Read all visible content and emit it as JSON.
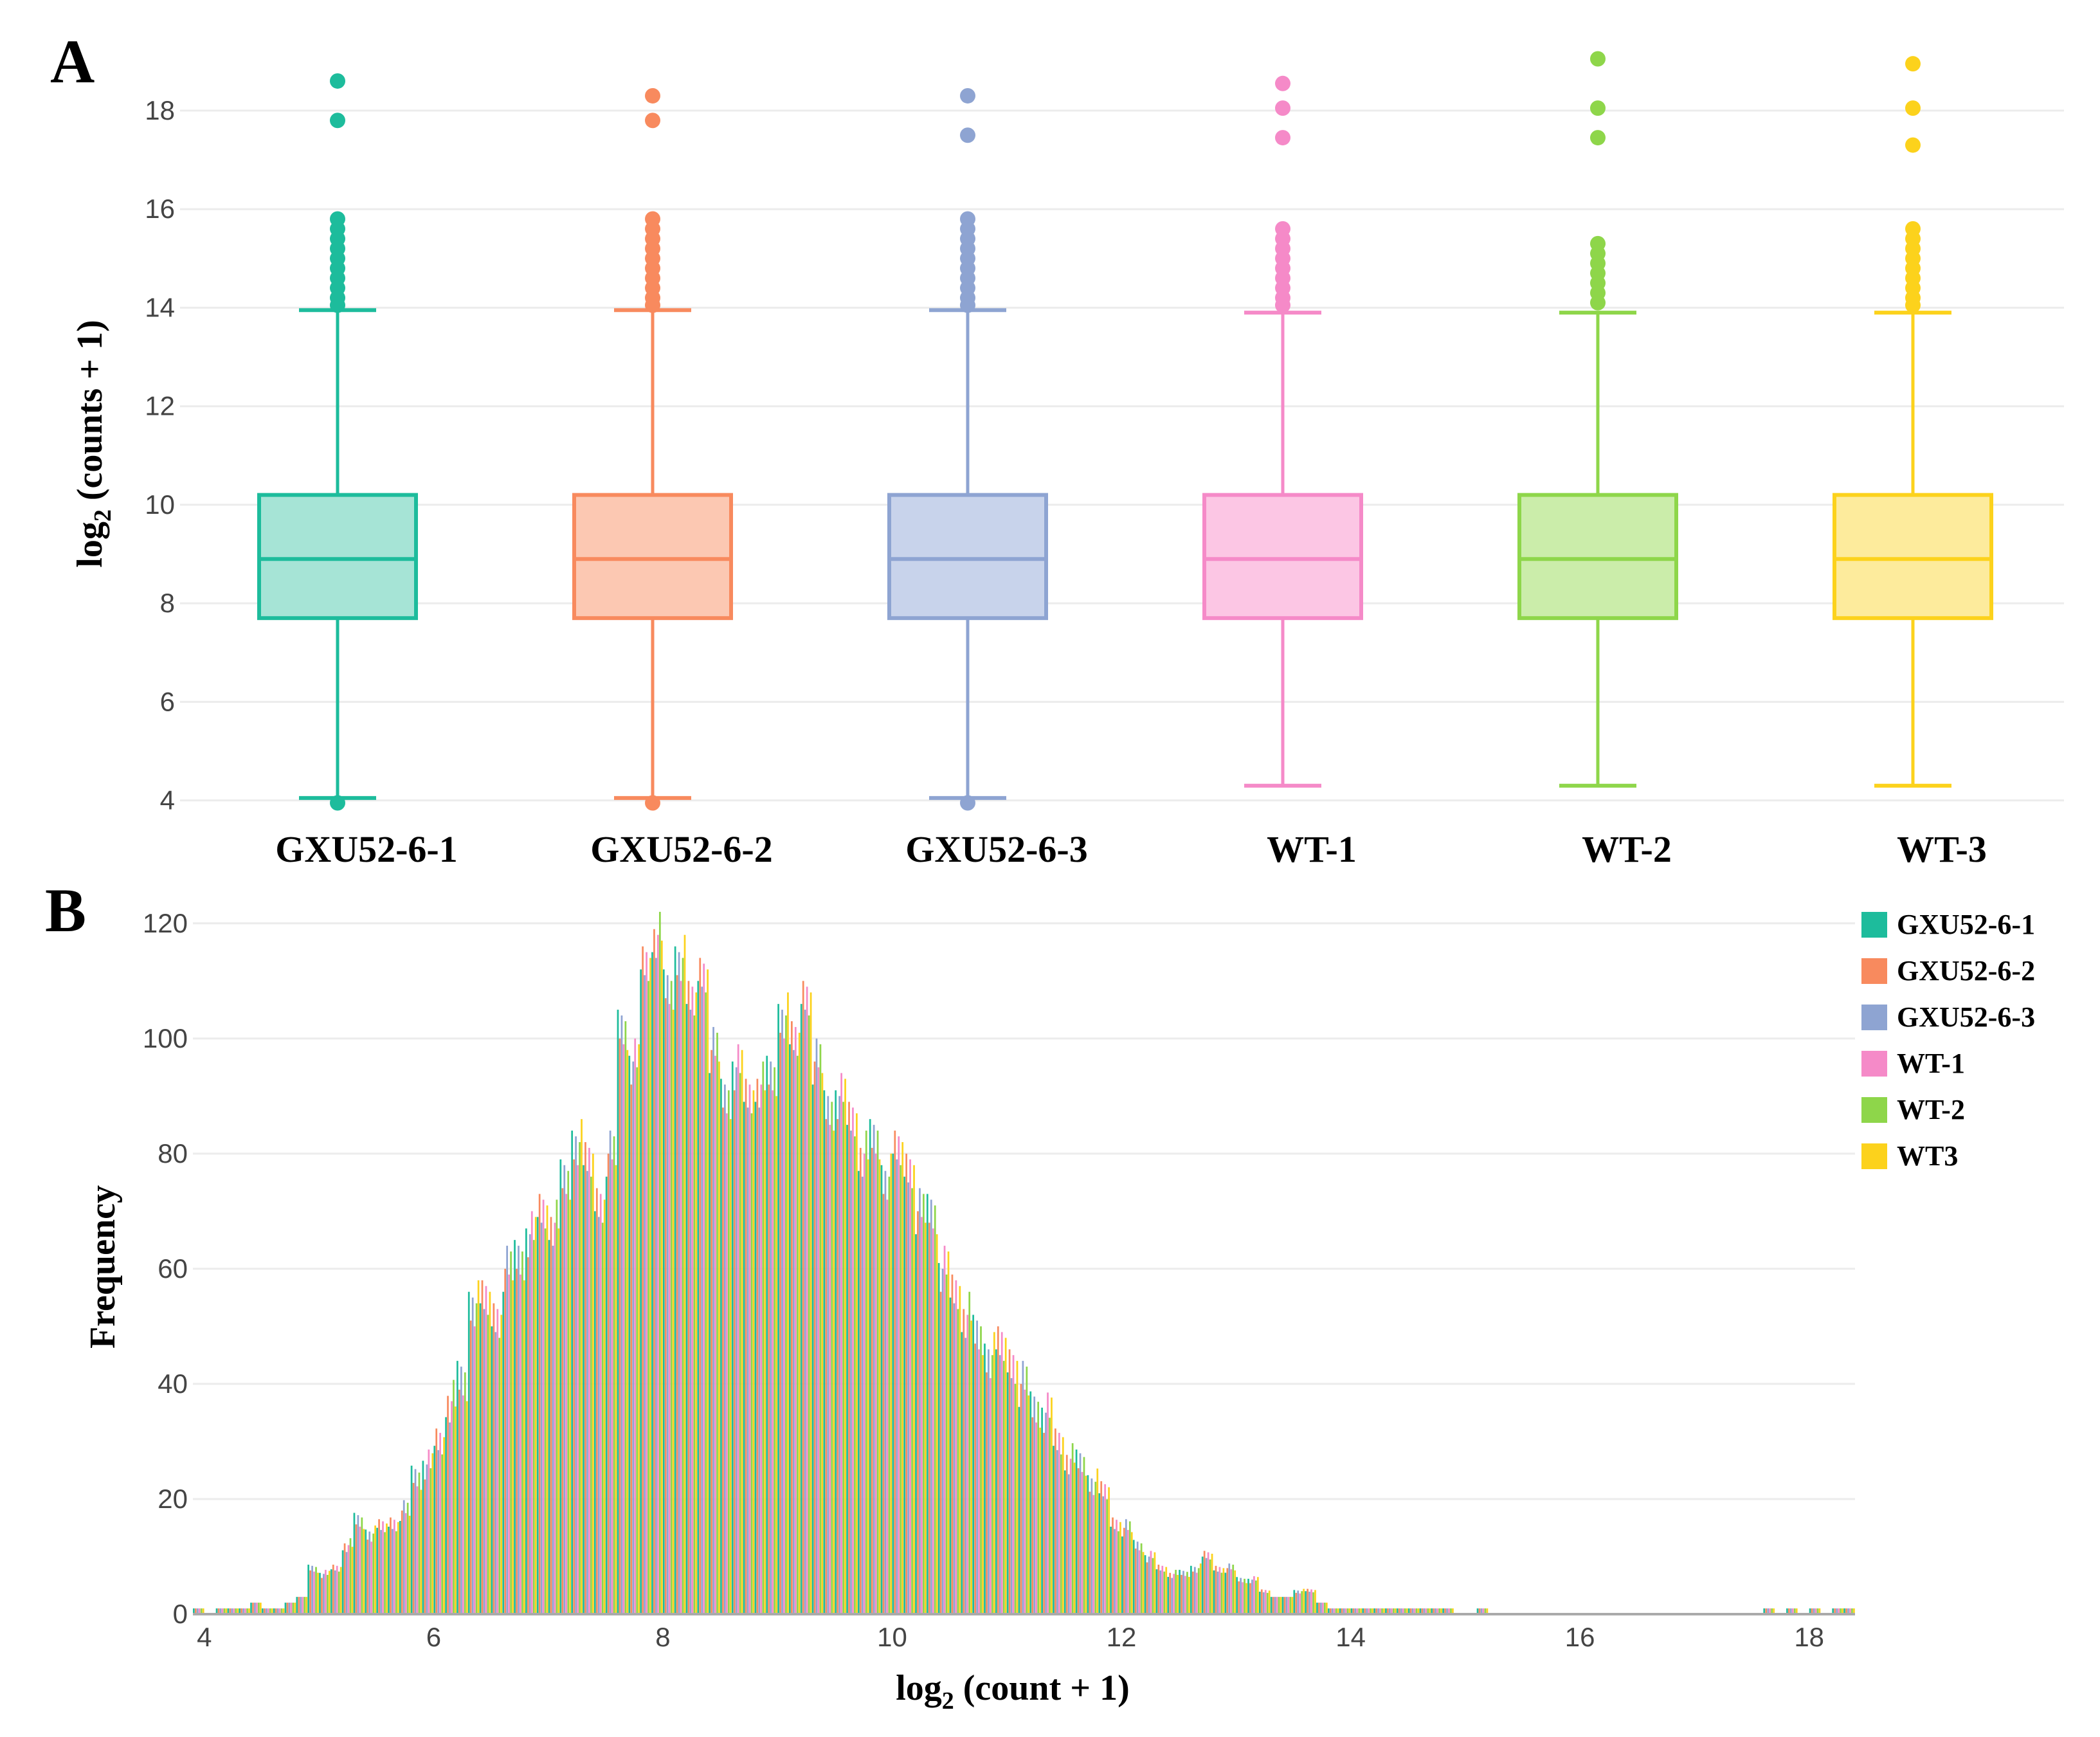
{
  "panels": {
    "a_letter": "A",
    "b_letter": "B"
  },
  "chart_data": [
    {
      "type": "box",
      "panel": "A",
      "ylabel_main": "log",
      "ylabel_sub": "2",
      "ylabel_rest": " (counts + 1)",
      "ylim": [
        3.8,
        19.2
      ],
      "yticks": [
        4,
        6,
        8,
        10,
        12,
        14,
        16,
        18
      ],
      "grid": true,
      "categories": [
        "GXU52-6-1",
        "GXU52-6-2",
        "GXU52-6-3",
        "WT-1",
        "WT-2",
        "WT-3"
      ],
      "colors": [
        "#1dbc9c",
        "#f88a5e",
        "#8ea4d2",
        "#f58ac8",
        "#8ed64a",
        "#fcd21c"
      ],
      "fills": [
        "#a6e4d6",
        "#fcc8b2",
        "#c8d3eb",
        "#fcc6e4",
        "#cbedaa",
        "#fdeb9c"
      ],
      "boxes": [
        {
          "min": 4.05,
          "q1": 7.7,
          "median": 8.9,
          "q3": 10.2,
          "max": 13.95,
          "outliers": [
            18.6,
            17.8,
            15.8,
            15.6,
            15.4,
            15.2,
            15.0,
            14.8,
            14.6,
            14.4,
            14.2,
            14.05,
            3.95
          ]
        },
        {
          "min": 4.05,
          "q1": 7.7,
          "median": 8.9,
          "q3": 10.2,
          "max": 13.95,
          "outliers": [
            18.3,
            17.8,
            15.8,
            15.6,
            15.4,
            15.2,
            15.0,
            14.8,
            14.6,
            14.4,
            14.2,
            14.05,
            3.95
          ]
        },
        {
          "min": 4.05,
          "q1": 7.7,
          "median": 8.9,
          "q3": 10.2,
          "max": 13.95,
          "outliers": [
            18.3,
            17.5,
            15.8,
            15.6,
            15.4,
            15.2,
            15.0,
            14.8,
            14.6,
            14.4,
            14.2,
            14.05,
            3.95
          ]
        },
        {
          "min": 4.3,
          "q1": 7.7,
          "median": 8.9,
          "q3": 10.2,
          "max": 13.9,
          "outliers": [
            18.55,
            18.05,
            17.45,
            15.6,
            15.4,
            15.2,
            15.0,
            14.8,
            14.6,
            14.4,
            14.2,
            14.05
          ]
        },
        {
          "min": 4.3,
          "q1": 7.7,
          "median": 8.9,
          "q3": 10.2,
          "max": 13.9,
          "outliers": [
            19.05,
            18.05,
            17.45,
            15.3,
            15.1,
            14.9,
            14.7,
            14.5,
            14.3,
            14.1
          ]
        },
        {
          "min": 4.3,
          "q1": 7.7,
          "median": 8.9,
          "q3": 10.2,
          "max": 13.9,
          "outliers": [
            18.95,
            18.05,
            17.3,
            15.6,
            15.4,
            15.2,
            15.0,
            14.8,
            14.6,
            14.4,
            14.2,
            14.05
          ]
        }
      ]
    },
    {
      "type": "bar",
      "panel": "B",
      "ylabel": "Frequency",
      "xlabel_main": "log",
      "xlabel_sub": "2",
      "xlabel_rest": " (count + 1)",
      "xlim": [
        3.9,
        18.4
      ],
      "ylim": [
        0,
        124
      ],
      "xticks": [
        4,
        6,
        8,
        10,
        12,
        14,
        16,
        18
      ],
      "yticks": [
        0,
        20,
        40,
        60,
        80,
        100,
        120
      ],
      "grid": true,
      "legend_position": "top-right",
      "series_names": [
        "GXU52-6-1",
        "GXU52-6-2",
        "GXU52-6-3",
        "WT-1",
        "WT-2",
        "WT3"
      ],
      "series_colors": [
        "#1dbc9c",
        "#f88a5e",
        "#8ea4d2",
        "#f58ac8",
        "#8ed64a",
        "#fcd21c"
      ],
      "bin_start": 3.9,
      "bin_width": 0.1,
      "approx_frequency_by_bin": [
        1,
        0,
        1,
        1,
        1,
        2,
        1,
        1,
        2,
        3,
        8,
        7,
        8,
        12,
        16,
        14,
        15,
        16,
        18,
        24,
        26,
        30,
        37,
        40,
        54,
        54,
        52,
        60,
        62,
        66,
        70,
        68,
        75,
        82,
        78,
        72,
        80,
        102,
        96,
        113,
        118,
        108,
        114,
        106,
        112,
        98,
        90,
        95,
        90,
        92,
        93,
        104,
        99,
        108,
        96,
        88,
        90,
        86,
        80,
        82,
        76,
        80,
        78,
        70,
        70,
        60,
        56,
        52,
        48,
        45,
        46,
        44,
        40,
        36,
        35,
        30,
        27,
        26,
        23,
        21,
        16,
        15,
        12,
        10,
        8,
        7,
        7,
        8,
        10,
        8,
        8,
        6,
        6,
        4,
        3,
        3,
        4,
        4,
        2,
        1,
        1,
        1,
        1,
        1,
        1,
        1,
        1,
        1,
        1,
        1,
        0,
        0,
        1,
        0,
        0,
        0,
        0,
        0,
        0,
        0,
        0,
        0,
        0,
        0,
        0,
        0,
        0,
        0,
        0,
        0,
        0,
        0,
        0,
        0,
        0,
        0,
        0,
        1,
        0,
        1,
        0,
        1,
        0,
        1,
        1
      ]
    }
  ]
}
